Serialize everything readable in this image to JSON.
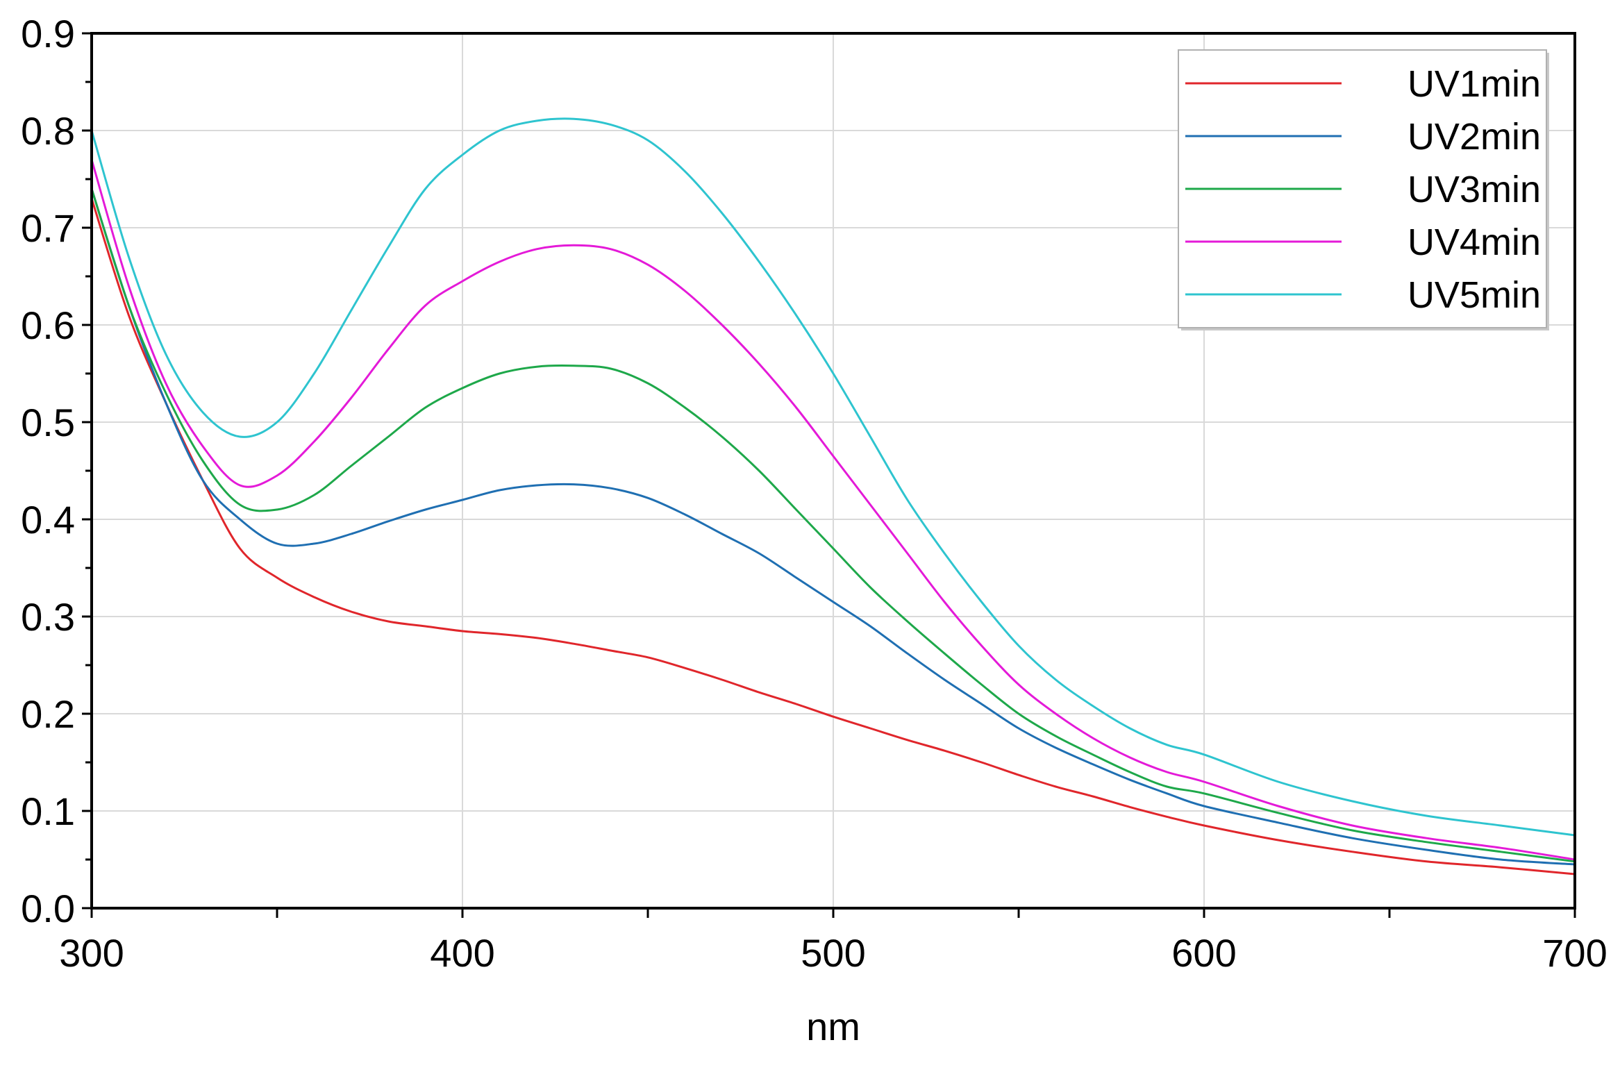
{
  "chart_data": {
    "type": "line",
    "title": "",
    "xlabel": "nm",
    "ylabel": "",
    "xlim": [
      300,
      700
    ],
    "ylim": [
      0.0,
      0.9
    ],
    "x_ticks": [
      "300",
      "400",
      "500",
      "600",
      "700"
    ],
    "y_ticks": [
      "0.0",
      "0.1",
      "0.2",
      "0.3",
      "0.4",
      "0.5",
      "0.6",
      "0.7",
      "0.8",
      "0.9"
    ],
    "grid": true,
    "legend_position": "top-right",
    "x": [
      300,
      310,
      320,
      330,
      340,
      350,
      360,
      370,
      380,
      390,
      400,
      410,
      420,
      430,
      440,
      450,
      460,
      470,
      480,
      490,
      500,
      510,
      520,
      530,
      540,
      550,
      560,
      570,
      580,
      590,
      600,
      620,
      640,
      660,
      680,
      700
    ],
    "series": [
      {
        "name": "UV1min",
        "color": "#e0262b",
        "values": [
          0.73,
          0.61,
          0.52,
          0.44,
          0.37,
          0.34,
          0.32,
          0.305,
          0.295,
          0.29,
          0.285,
          0.282,
          0.278,
          0.272,
          0.265,
          0.258,
          0.247,
          0.235,
          0.222,
          0.21,
          0.197,
          0.185,
          0.173,
          0.162,
          0.15,
          0.137,
          0.125,
          0.115,
          0.104,
          0.094,
          0.085,
          0.07,
          0.058,
          0.048,
          0.042,
          0.035
        ]
      },
      {
        "name": "UV2min",
        "color": "#1f6fb2",
        "values": [
          0.74,
          0.62,
          0.52,
          0.44,
          0.4,
          0.375,
          0.375,
          0.385,
          0.398,
          0.41,
          0.42,
          0.43,
          0.435,
          0.436,
          0.432,
          0.422,
          0.405,
          0.385,
          0.365,
          0.34,
          0.315,
          0.29,
          0.262,
          0.235,
          0.21,
          0.185,
          0.165,
          0.148,
          0.132,
          0.118,
          0.105,
          0.088,
          0.072,
          0.06,
          0.05,
          0.045
        ]
      },
      {
        "name": "UV3min",
        "color": "#1ea84a",
        "values": [
          0.74,
          0.62,
          0.53,
          0.46,
          0.415,
          0.41,
          0.425,
          0.455,
          0.485,
          0.515,
          0.535,
          0.55,
          0.557,
          0.558,
          0.555,
          0.54,
          0.515,
          0.485,
          0.45,
          0.41,
          0.37,
          0.33,
          0.295,
          0.262,
          0.23,
          0.2,
          0.177,
          0.158,
          0.14,
          0.125,
          0.118,
          0.098,
          0.08,
          0.068,
          0.058,
          0.048
        ]
      },
      {
        "name": "UV4min",
        "color": "#e41ad8",
        "values": [
          0.77,
          0.64,
          0.54,
          0.475,
          0.435,
          0.445,
          0.48,
          0.525,
          0.575,
          0.62,
          0.645,
          0.665,
          0.678,
          0.682,
          0.678,
          0.662,
          0.635,
          0.6,
          0.56,
          0.515,
          0.465,
          0.415,
          0.365,
          0.315,
          0.27,
          0.23,
          0.2,
          0.175,
          0.155,
          0.14,
          0.13,
          0.105,
          0.085,
          0.072,
          0.062,
          0.05
        ]
      },
      {
        "name": "UV5min",
        "color": "#2ec4cf",
        "values": [
          0.8,
          0.67,
          0.57,
          0.51,
          0.485,
          0.5,
          0.55,
          0.615,
          0.68,
          0.74,
          0.775,
          0.8,
          0.81,
          0.812,
          0.806,
          0.79,
          0.758,
          0.715,
          0.665,
          0.61,
          0.55,
          0.485,
          0.42,
          0.365,
          0.315,
          0.27,
          0.235,
          0.208,
          0.185,
          0.168,
          0.158,
          0.13,
          0.11,
          0.095,
          0.085,
          0.075
        ]
      }
    ]
  }
}
